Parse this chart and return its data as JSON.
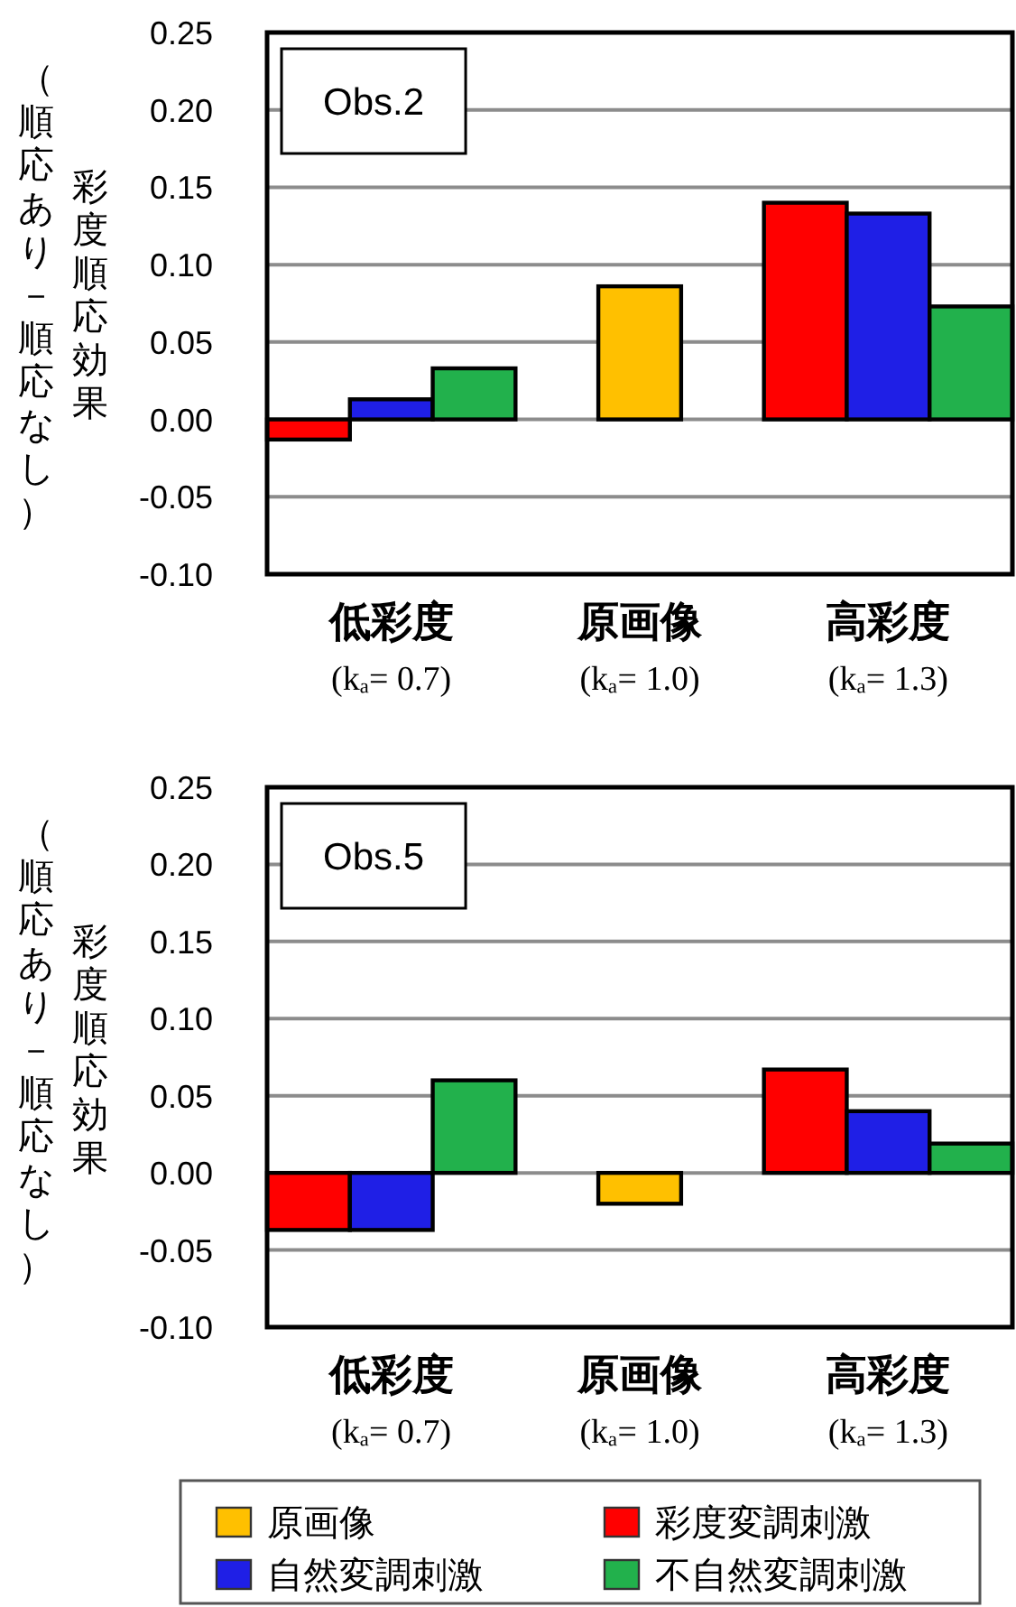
{
  "chart_data": [
    {
      "type": "bar",
      "title": "Obs.2",
      "ylabel": "彩度順応効果（順応あり－順応なし）",
      "categories": [
        "低彩度\n(kₐ= 0.7)",
        "原画像\n(kₐ= 1.0)",
        "高彩度\n(kₐ= 1.3)"
      ],
      "ylim": [
        -0.1,
        0.25
      ],
      "yticks": [
        {
          "value": -0.1,
          "label": "-0.10"
        },
        -0.05,
        {
          "value": 0,
          "label": "0.00"
        },
        0.05,
        {
          "value": 0.1,
          "label": "0.10"
        },
        0.15,
        {
          "value": 0.2,
          "label": "0.20"
        },
        0.25
      ],
      "grid": "y",
      "series": [
        {
          "color": "#ffc000",
          "values": [
            null,
            0.086,
            null
          ]
        },
        {
          "color": "#ff0000",
          "values": [
            -0.013,
            null,
            0.14
          ]
        },
        {
          "color": "#1f1fe6",
          "values": [
            0.013,
            null,
            0.133
          ]
        },
        {
          "color": "#22b14c",
          "values": [
            0.033,
            null,
            0.073
          ]
        }
      ]
    },
    {
      "type": "bar",
      "title": "Obs.5",
      "ylabel": "彩度順応効果（順応あり－順応なし）",
      "categories": [
        "低彩度\n(kₐ= 0.7)",
        "原画像\n(kₐ= 1.0)",
        "高彩度\n(kₐ= 1.3)"
      ],
      "ylim": [
        -0.1,
        0.25
      ],
      "yticks": [
        {
          "value": -0.1,
          "label": "-0.10"
        },
        -0.05,
        {
          "value": 0,
          "label": "0.00"
        },
        0.05,
        {
          "value": 0.1,
          "label": "0.10"
        },
        0.15,
        {
          "value": 0.2,
          "label": "0.20"
        },
        0.25
      ],
      "grid": "y",
      "legend": "bottom",
      "series": [
        {
          "name": "原画像",
          "color": "#ffc000",
          "values": [
            null,
            -0.02,
            null
          ]
        },
        {
          "name": "彩度変調刺激",
          "color": "#ff0000",
          "values": [
            -0.037,
            null,
            0.067
          ]
        },
        {
          "name": "自然変調刺激",
          "color": "#1f1fe6",
          "values": [
            -0.037,
            null,
            0.04
          ]
        },
        {
          "name": "不自然変調刺激",
          "color": "#22b14c",
          "values": [
            0.06,
            null,
            0.019
          ]
        }
      ]
    }
  ]
}
